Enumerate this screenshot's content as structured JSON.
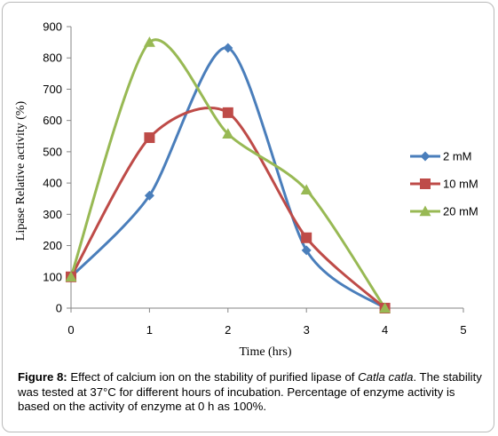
{
  "chart_data": {
    "type": "line",
    "xlabel": "Time (hrs)",
    "ylabel": "Lipase Relative activity (%)",
    "xlim": [
      0,
      5
    ],
    "ylim": [
      0,
      900
    ],
    "xticks": [
      "0",
      "1",
      "2",
      "3",
      "4",
      "5"
    ],
    "yticks": [
      "0",
      "100",
      "200",
      "300",
      "400",
      "500",
      "600",
      "700",
      "800",
      "900"
    ],
    "grid": false,
    "smooth": true,
    "legend_position": "right",
    "series": [
      {
        "name": "2 mM",
        "marker": "diamond",
        "color": "#4a7ebb",
        "points": [
          {
            "x": 0,
            "y": 100
          },
          {
            "x": 1,
            "y": 360
          },
          {
            "x": 2,
            "y": 832
          },
          {
            "x": 3,
            "y": 185
          },
          {
            "x": 4,
            "y": 0
          }
        ]
      },
      {
        "name": "10 mM",
        "marker": "square",
        "color": "#be4b48",
        "points": [
          {
            "x": 0,
            "y": 100
          },
          {
            "x": 1,
            "y": 545
          },
          {
            "x": 2,
            "y": 625
          },
          {
            "x": 3,
            "y": 225
          },
          {
            "x": 4,
            "y": 0
          }
        ]
      },
      {
        "name": "20 mM",
        "marker": "triangle",
        "color": "#98b954",
        "points": [
          {
            "x": 0,
            "y": 100
          },
          {
            "x": 1,
            "y": 850
          },
          {
            "x": 2,
            "y": 557
          },
          {
            "x": 3,
            "y": 378
          },
          {
            "x": 4,
            "y": 0
          }
        ]
      }
    ]
  },
  "caption": {
    "lead": "Figure 8:",
    "text_before_species": " Effect of calcium ion on the stability of purified lipase of ",
    "species": "Catla catla",
    "text_after_species": ". The stability was tested at 37°C for different hours of incubation. Percentage of enzyme activity is based on the activity of enzyme at 0 h as 100%."
  }
}
